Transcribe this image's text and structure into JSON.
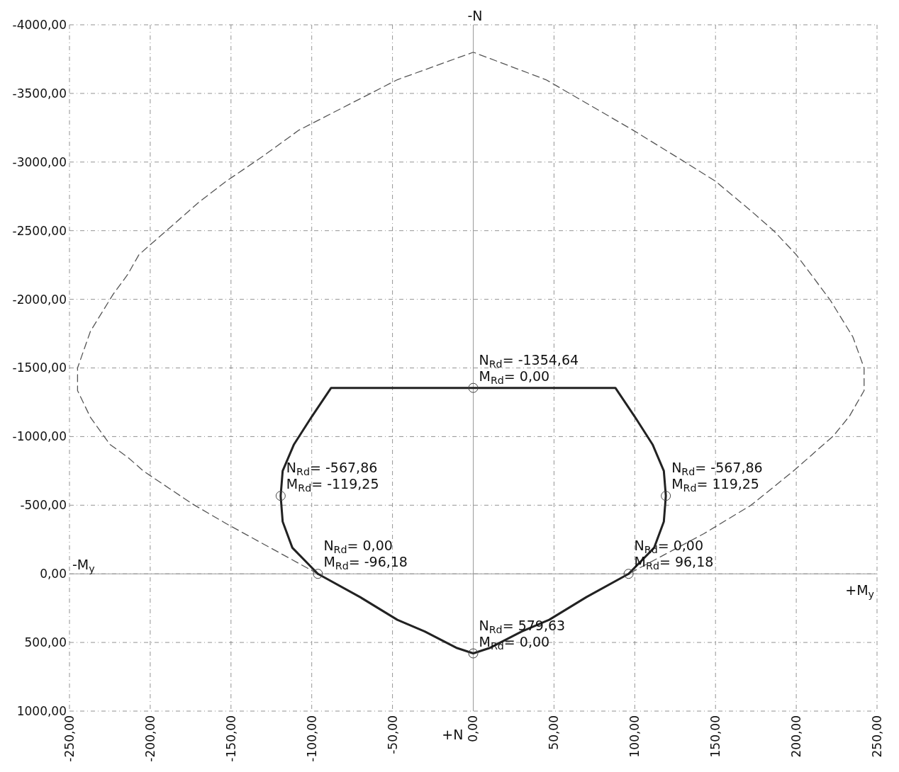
{
  "chart_data": {
    "type": "line",
    "xlim": [
      -250,
      250
    ],
    "ylim": [
      1000,
      -4000
    ],
    "xticks": [
      {
        "value": -250,
        "label": "-250,00"
      },
      {
        "value": -200,
        "label": "-200,00"
      },
      {
        "value": -150,
        "label": "-150,00"
      },
      {
        "value": -100,
        "label": "-100,00"
      },
      {
        "value": -50,
        "label": "-50,00"
      },
      {
        "value": 0,
        "label": "0,00"
      },
      {
        "value": 50,
        "label": "50,00"
      },
      {
        "value": 100,
        "label": "100,00"
      },
      {
        "value": 150,
        "label": "150,00"
      },
      {
        "value": 200,
        "label": "200,00"
      },
      {
        "value": 250,
        "label": "250,00"
      }
    ],
    "yticks": [
      {
        "value": -4000,
        "label": "-4000,00"
      },
      {
        "value": -3500,
        "label": "-3500,00"
      },
      {
        "value": -3000,
        "label": "-3000,00"
      },
      {
        "value": -2500,
        "label": "-2500,00"
      },
      {
        "value": -2000,
        "label": "-2000,00"
      },
      {
        "value": -1500,
        "label": "-1500,00"
      },
      {
        "value": -1000,
        "label": "-1000,00"
      },
      {
        "value": -500,
        "label": "-500,00"
      },
      {
        "value": 0,
        "label": "0,00"
      },
      {
        "value": 500,
        "label": "500,00"
      },
      {
        "value": 1000,
        "label": "1000,00"
      }
    ],
    "grid": true,
    "series": [
      {
        "color": "#555555",
        "line_style": "dashed",
        "marker": "none",
        "x": [
          -96.18,
          -153,
          -174,
          -204,
          -214,
          -225,
          -237,
          -245,
          -245,
          -237,
          -223,
          -214,
          -207,
          -190,
          -170,
          -153,
          -131,
          -108,
          -47,
          0,
          45,
          99,
          129,
          150,
          172,
          186,
          200,
          221,
          235,
          242,
          242,
          233,
          223,
          198,
          172,
          143,
          96.18
        ],
        "values": [
          0,
          -366,
          -510,
          -747,
          -850,
          -943,
          -1139,
          -1335,
          -1500,
          -1768,
          -2036,
          -2180,
          -2325,
          -2500,
          -2706,
          -2860,
          -3036,
          -3232,
          -3600,
          -3800,
          -3600,
          -3232,
          -3015,
          -2860,
          -2644,
          -2500,
          -2325,
          -1995,
          -1727,
          -1500,
          -1335,
          -1150,
          -1005,
          -747,
          -500,
          -294,
          0
        ]
      },
      {
        "color": "#222222",
        "line_style": "solid",
        "marker": "none",
        "x": [
          -96.18,
          -112,
          -118,
          -119.25,
          -118,
          -111,
          -100,
          -88,
          0,
          88,
          100,
          111,
          118,
          119.25,
          118,
          112,
          96.18
        ],
        "values": [
          0,
          -190,
          -380,
          -567.86,
          -750,
          -943,
          -1145,
          -1354.64,
          -1354.64,
          -1354.64,
          -1145,
          -943,
          -750,
          -567.86,
          -380,
          -190,
          0
        ]
      },
      {
        "color": "#222222",
        "line_style": "solid",
        "marker": "none",
        "x": [
          -96.18,
          -70,
          -47,
          -30,
          -10,
          0,
          10,
          30,
          47,
          70,
          96.18
        ],
        "values": [
          0,
          170,
          335,
          420,
          541,
          579.63,
          541,
          420,
          335,
          170,
          0
        ]
      },
      {
        "type": "scatter",
        "color": "#444444",
        "marker": "circle",
        "x": [
          0,
          -119.25,
          119.25,
          -96.18,
          96.18,
          0
        ],
        "values": [
          -1354.64,
          -567.86,
          -567.86,
          0,
          0,
          579.63
        ],
        "value_labels": [
          "N$_{Rd}$= -1354,64\nM$_{Rd}$= 0,00",
          "N$_{Rd}$= -567,86\nM$_{Rd}$= -119,25",
          "N$_{Rd}$= -567,86\nM$_{Rd}$= 119,25",
          "N$_{Rd}$= 0,00\nM$_{Rd}$= -96,18",
          "N$_{Rd}$= 0,00\nM$_{Rd}$= 96,18",
          "N$_{Rd}$= 579,63\nM$_{Rd}$= 0,00"
        ]
      }
    ],
    "annotations": [
      "-N",
      "+N",
      "-M$_{y}$",
      "+M$_{y}$"
    ]
  }
}
